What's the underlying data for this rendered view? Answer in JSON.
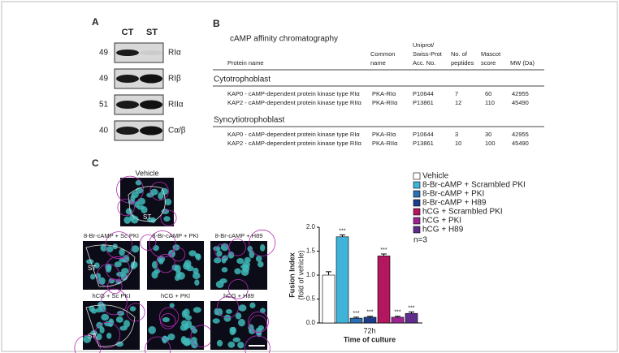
{
  "panel_a": {
    "label": "A",
    "lanes": [
      "CT",
      "ST"
    ],
    "rows": [
      {
        "mw": "49",
        "protein": "RIα"
      },
      {
        "mw": "49",
        "protein": "RIβ"
      },
      {
        "mw": "51",
        "protein": "RIIα"
      },
      {
        "mw": "40",
        "protein": "Cα/β"
      }
    ]
  },
  "panel_b": {
    "label": "B",
    "title": "cAMP affinity chromatography",
    "columns": [
      [
        "Protein name"
      ],
      [
        "Common",
        "name"
      ],
      [
        "Uniprot/",
        "Swiss-Prot",
        "Acc. No."
      ],
      [
        "No. of",
        "peptides"
      ],
      [
        "Mascot",
        "score"
      ],
      [
        "MW (Da)"
      ]
    ],
    "groups": [
      {
        "name": "Cytotrophoblast",
        "rows": [
          [
            "KAP0 - cAMP-dependent protein kinase type RIα",
            "PKA-RIα",
            "P10644",
            "7",
            "60",
            "42955"
          ],
          [
            "KAP2 - cAMP-dependent protein kinase type RIIα",
            "PKA-RIIα",
            "P13861",
            "12",
            "110",
            "45490"
          ]
        ]
      },
      {
        "name": "Syncytiotrophoblast",
        "rows": [
          [
            "KAP0 - cAMP-dependent protein kinase type RIα",
            "PKA-RIα",
            "P10644",
            "3",
            "30",
            "42955"
          ],
          [
            "KAP2 - cAMP-dependent protein kinase type RIIα",
            "PKA-RIIα",
            "P13861",
            "10",
            "100",
            "45490"
          ]
        ]
      }
    ]
  },
  "panel_c": {
    "label": "C",
    "images": {
      "top": "Vehicle",
      "grid": [
        "8-Br-cAMP + Sc PKI",
        "8-Br-cAMP + PKI",
        "8-Br-cAMP + H89",
        "hCG + Sc PKI",
        "hCG + PKI",
        "hCG + H89"
      ],
      "region": "ST"
    },
    "n": "n=3"
  },
  "chart_data": {
    "type": "bar",
    "ylabel": [
      "Fusion Index",
      "(fold of vehicle)"
    ],
    "xlabel": "Time of culture",
    "categories": [
      "72h"
    ],
    "ylim": [
      0,
      2.0
    ],
    "yticks": [
      {
        "value": 0,
        "label": "0.0"
      },
      {
        "value": 0.5,
        "label": "0.5"
      },
      {
        "value": 1,
        "label": "1.0"
      },
      {
        "value": 1.5,
        "label": "1.5"
      },
      {
        "value": 2,
        "label": "2.0"
      }
    ],
    "series": [
      {
        "name": "Vehicle",
        "color": "#ffffff",
        "values": [
          1.0
        ],
        "errors": [
          0.07
        ]
      },
      {
        "name": "8-Br-cAMP + Scrambled PKI",
        "color": "#3fb3d9",
        "values": [
          1.8
        ],
        "errors": [
          0.04
        ],
        "annotation": "***"
      },
      {
        "name": "8-Br-cAMP + PKI",
        "color": "#2a70b2",
        "values": [
          0.1
        ],
        "errors": [
          0.02
        ],
        "annotation": "***"
      },
      {
        "name": "8-Br-cAMP + H89",
        "color": "#1e3c8c",
        "values": [
          0.12
        ],
        "errors": [
          0.02
        ],
        "annotation": "***"
      },
      {
        "name": "hCG + Scrambled PKI",
        "color": "#b3175f",
        "values": [
          1.4
        ],
        "errors": [
          0.04
        ],
        "annotation": "***"
      },
      {
        "name": "hCG + PKI",
        "color": "#9b2590",
        "values": [
          0.12
        ],
        "errors": [
          0.02
        ],
        "annotation": "***"
      },
      {
        "name": "hCG + H89",
        "color": "#5e2d8c",
        "values": [
          0.2
        ],
        "errors": [
          0.03
        ],
        "annotation": "***"
      }
    ]
  }
}
